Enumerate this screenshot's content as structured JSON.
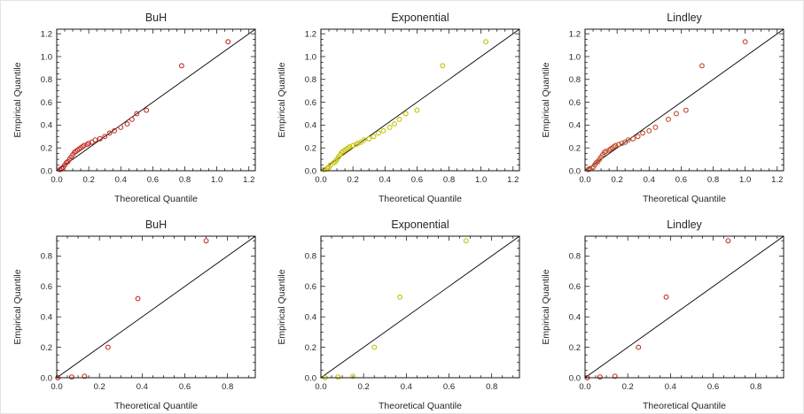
{
  "figure": {
    "background": "#ffffff",
    "line_color": "#000000",
    "frame_color": "#000000",
    "label_color": "#262626"
  },
  "chart_data": [
    {
      "type": "scatter",
      "title": "BuH",
      "xlabel": "Theoretical Quantile",
      "ylabel": "Empirical Quantile",
      "xlim": [
        0,
        1.24
      ],
      "ylim": [
        0,
        1.24
      ],
      "xticks": [
        0,
        0.2,
        0.4,
        0.6,
        0.8,
        1.0,
        1.2
      ],
      "yticks": [
        0,
        0.2,
        0.4,
        0.6,
        0.8,
        1.0,
        1.2
      ],
      "minor_step": 0.05,
      "reference_line": "y=x",
      "point_color": "#bf3026",
      "points": [
        [
          0.02,
          0.01
        ],
        [
          0.03,
          0.02
        ],
        [
          0.04,
          0.03
        ],
        [
          0.05,
          0.05
        ],
        [
          0.06,
          0.07
        ],
        [
          0.07,
          0.08
        ],
        [
          0.08,
          0.1
        ],
        [
          0.09,
          0.12
        ],
        [
          0.1,
          0.14
        ],
        [
          0.11,
          0.16
        ],
        [
          0.12,
          0.17
        ],
        [
          0.13,
          0.18
        ],
        [
          0.14,
          0.19
        ],
        [
          0.15,
          0.2
        ],
        [
          0.16,
          0.21
        ],
        [
          0.17,
          0.22
        ],
        [
          0.19,
          0.23
        ],
        [
          0.2,
          0.24
        ],
        [
          0.22,
          0.25
        ],
        [
          0.24,
          0.27
        ],
        [
          0.27,
          0.28
        ],
        [
          0.3,
          0.3
        ],
        [
          0.33,
          0.33
        ],
        [
          0.36,
          0.35
        ],
        [
          0.4,
          0.38
        ],
        [
          0.44,
          0.41
        ],
        [
          0.47,
          0.45
        ],
        [
          0.5,
          0.5
        ],
        [
          0.56,
          0.53
        ],
        [
          0.78,
          0.92
        ],
        [
          1.07,
          1.13
        ]
      ]
    },
    {
      "type": "scatter",
      "title": "Exponential",
      "xlabel": "Theoretical Quantile",
      "ylabel": "Empirical Quantile",
      "xlim": [
        0,
        1.24
      ],
      "ylim": [
        0,
        1.24
      ],
      "xticks": [
        0,
        0.2,
        0.4,
        0.6,
        0.8,
        1.0,
        1.2
      ],
      "yticks": [
        0,
        0.2,
        0.4,
        0.6,
        0.8,
        1.0,
        1.2
      ],
      "minor_step": 0.05,
      "reference_line": "y=x",
      "point_color": "#c6c000",
      "points": [
        [
          0.02,
          0.01
        ],
        [
          0.04,
          0.02
        ],
        [
          0.05,
          0.03
        ],
        [
          0.06,
          0.05
        ],
        [
          0.08,
          0.07
        ],
        [
          0.09,
          0.08
        ],
        [
          0.1,
          0.1
        ],
        [
          0.11,
          0.12
        ],
        [
          0.12,
          0.14
        ],
        [
          0.13,
          0.16
        ],
        [
          0.14,
          0.17
        ],
        [
          0.15,
          0.18
        ],
        [
          0.16,
          0.19
        ],
        [
          0.17,
          0.2
        ],
        [
          0.18,
          0.21
        ],
        [
          0.2,
          0.22
        ],
        [
          0.22,
          0.23
        ],
        [
          0.23,
          0.24
        ],
        [
          0.25,
          0.25
        ],
        [
          0.27,
          0.27
        ],
        [
          0.3,
          0.28
        ],
        [
          0.33,
          0.3
        ],
        [
          0.36,
          0.33
        ],
        [
          0.39,
          0.35
        ],
        [
          0.43,
          0.38
        ],
        [
          0.46,
          0.41
        ],
        [
          0.49,
          0.45
        ],
        [
          0.53,
          0.5
        ],
        [
          0.6,
          0.53
        ],
        [
          0.76,
          0.92
        ],
        [
          1.03,
          1.13
        ]
      ]
    },
    {
      "type": "scatter",
      "title": "Lindley",
      "xlabel": "Theoretical Quantile",
      "ylabel": "Empirical Quantile",
      "xlim": [
        0,
        1.24
      ],
      "ylim": [
        0,
        1.24
      ],
      "xticks": [
        0,
        0.2,
        0.4,
        0.6,
        0.8,
        1.0,
        1.2
      ],
      "yticks": [
        0,
        0.2,
        0.4,
        0.6,
        0.8,
        1.0,
        1.2
      ],
      "minor_step": 0.05,
      "reference_line": "y=x",
      "point_color": "#c2482a",
      "points": [
        [
          0.02,
          0.01
        ],
        [
          0.03,
          0.02
        ],
        [
          0.05,
          0.03
        ],
        [
          0.06,
          0.05
        ],
        [
          0.07,
          0.07
        ],
        [
          0.08,
          0.08
        ],
        [
          0.09,
          0.1
        ],
        [
          0.1,
          0.12
        ],
        [
          0.11,
          0.14
        ],
        [
          0.12,
          0.16
        ],
        [
          0.13,
          0.17
        ],
        [
          0.15,
          0.18
        ],
        [
          0.16,
          0.19
        ],
        [
          0.17,
          0.2
        ],
        [
          0.18,
          0.21
        ],
        [
          0.19,
          0.22
        ],
        [
          0.21,
          0.23
        ],
        [
          0.23,
          0.24
        ],
        [
          0.25,
          0.25
        ],
        [
          0.27,
          0.27
        ],
        [
          0.3,
          0.28
        ],
        [
          0.33,
          0.3
        ],
        [
          0.36,
          0.33
        ],
        [
          0.4,
          0.35
        ],
        [
          0.44,
          0.38
        ],
        [
          0.52,
          0.45
        ],
        [
          0.57,
          0.5
        ],
        [
          0.63,
          0.53
        ],
        [
          0.73,
          0.92
        ],
        [
          1.0,
          1.13
        ]
      ]
    },
    {
      "type": "scatter",
      "title": "BuH",
      "xlabel": "Theoretical Quantile",
      "ylabel": "Empirical Quantile",
      "xlim": [
        0,
        0.93
      ],
      "ylim": [
        0,
        0.93
      ],
      "xticks": [
        0,
        0.2,
        0.4,
        0.6,
        0.8
      ],
      "yticks": [
        0,
        0.2,
        0.4,
        0.6,
        0.8
      ],
      "minor_step": 0.05,
      "reference_line": "y=x",
      "point_color": "#bf3026",
      "points": [
        [
          0.005,
          0.0
        ],
        [
          0.07,
          0.005
        ],
        [
          0.13,
          0.01
        ],
        [
          0.24,
          0.2
        ],
        [
          0.38,
          0.52
        ],
        [
          0.7,
          0.9
        ]
      ]
    },
    {
      "type": "scatter",
      "title": "Exponential",
      "xlabel": "Theoretical Quantile",
      "ylabel": "Empirical Quantile",
      "xlim": [
        0,
        0.93
      ],
      "ylim": [
        0,
        0.93
      ],
      "xticks": [
        0,
        0.2,
        0.4,
        0.6,
        0.8
      ],
      "yticks": [
        0,
        0.2,
        0.4,
        0.6,
        0.8
      ],
      "minor_step": 0.05,
      "reference_line": "y=x",
      "point_color": "#c6c000",
      "points": [
        [
          0.02,
          0.0
        ],
        [
          0.08,
          0.005
        ],
        [
          0.15,
          0.01
        ],
        [
          0.25,
          0.2
        ],
        [
          0.37,
          0.53
        ],
        [
          0.68,
          0.9
        ]
      ]
    },
    {
      "type": "scatter",
      "title": "Lindley",
      "xlabel": "Theoretical Quantile",
      "ylabel": "Empirical Quantile",
      "xlim": [
        0,
        0.93
      ],
      "ylim": [
        0,
        0.93
      ],
      "xticks": [
        0,
        0.2,
        0.4,
        0.6,
        0.8
      ],
      "yticks": [
        0,
        0.2,
        0.4,
        0.6,
        0.8
      ],
      "minor_step": 0.05,
      "reference_line": "y=x",
      "point_color": "#bf3026",
      "points": [
        [
          0.01,
          0.0
        ],
        [
          0.07,
          0.005
        ],
        [
          0.14,
          0.01
        ],
        [
          0.25,
          0.2
        ],
        [
          0.38,
          0.53
        ],
        [
          0.67,
          0.9
        ]
      ]
    }
  ]
}
